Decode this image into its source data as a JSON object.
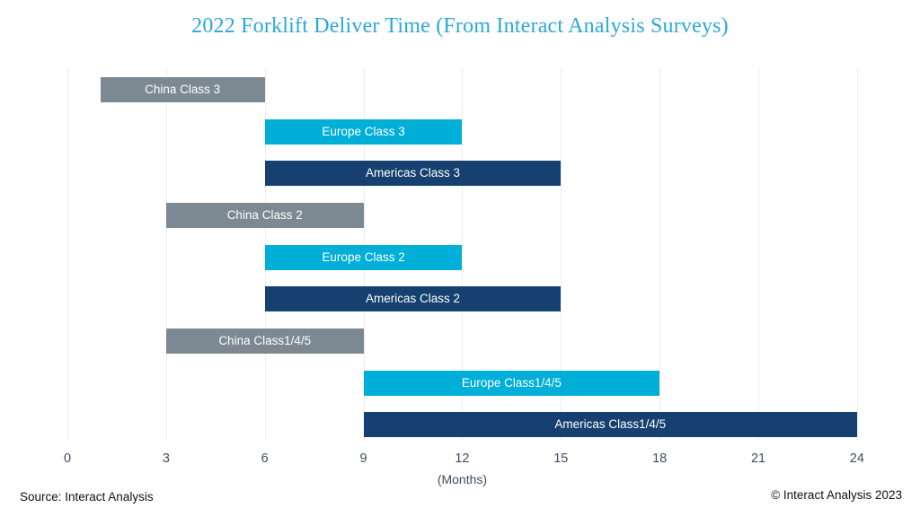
{
  "title": "2022 Forklift Deliver Time (From Interact Analysis Surveys)",
  "footer": {
    "source": "Source: Interact Analysis",
    "copyright": "© Interact Analysis 2023"
  },
  "colors": {
    "title_text": "#2BA8DB",
    "axis_text": "#3E4C63",
    "gridline": "#EDEDED",
    "bar_label_text": "#FFFFFF",
    "china": "#7C8992",
    "europe": "#00AFD7",
    "americas": "#15406F"
  },
  "chart_data": {
    "type": "bar",
    "subtype": "horizontal-range",
    "title": "2022 Forklift Deliver Time (From Interact Analysis Surveys)",
    "xlabel": "(Months)",
    "ylabel": "",
    "xlim": [
      0,
      24
    ],
    "x_ticks": [
      0,
      3,
      6,
      9,
      12,
      15,
      18,
      21,
      24
    ],
    "grid": true,
    "legend": false,
    "bars": [
      {
        "label": "China Class 3",
        "start": 1,
        "end": 6,
        "series": "china"
      },
      {
        "label": "Europe Class 3",
        "start": 6,
        "end": 12,
        "series": "europe"
      },
      {
        "label": "Americas Class 3",
        "start": 6,
        "end": 15,
        "series": "americas"
      },
      {
        "label": "China Class 2",
        "start": 3,
        "end": 9,
        "series": "china"
      },
      {
        "label": "Europe Class 2",
        "start": 6,
        "end": 12,
        "series": "europe"
      },
      {
        "label": "Americas Class 2",
        "start": 6,
        "end": 15,
        "series": "americas"
      },
      {
        "label": "China Class1/4/5",
        "start": 3,
        "end": 9,
        "series": "china"
      },
      {
        "label": "Europe Class1/4/5",
        "start": 9,
        "end": 18,
        "series": "europe"
      },
      {
        "label": "Americas Class1/4/5",
        "start": 9,
        "end": 24,
        "series": "americas"
      }
    ]
  }
}
